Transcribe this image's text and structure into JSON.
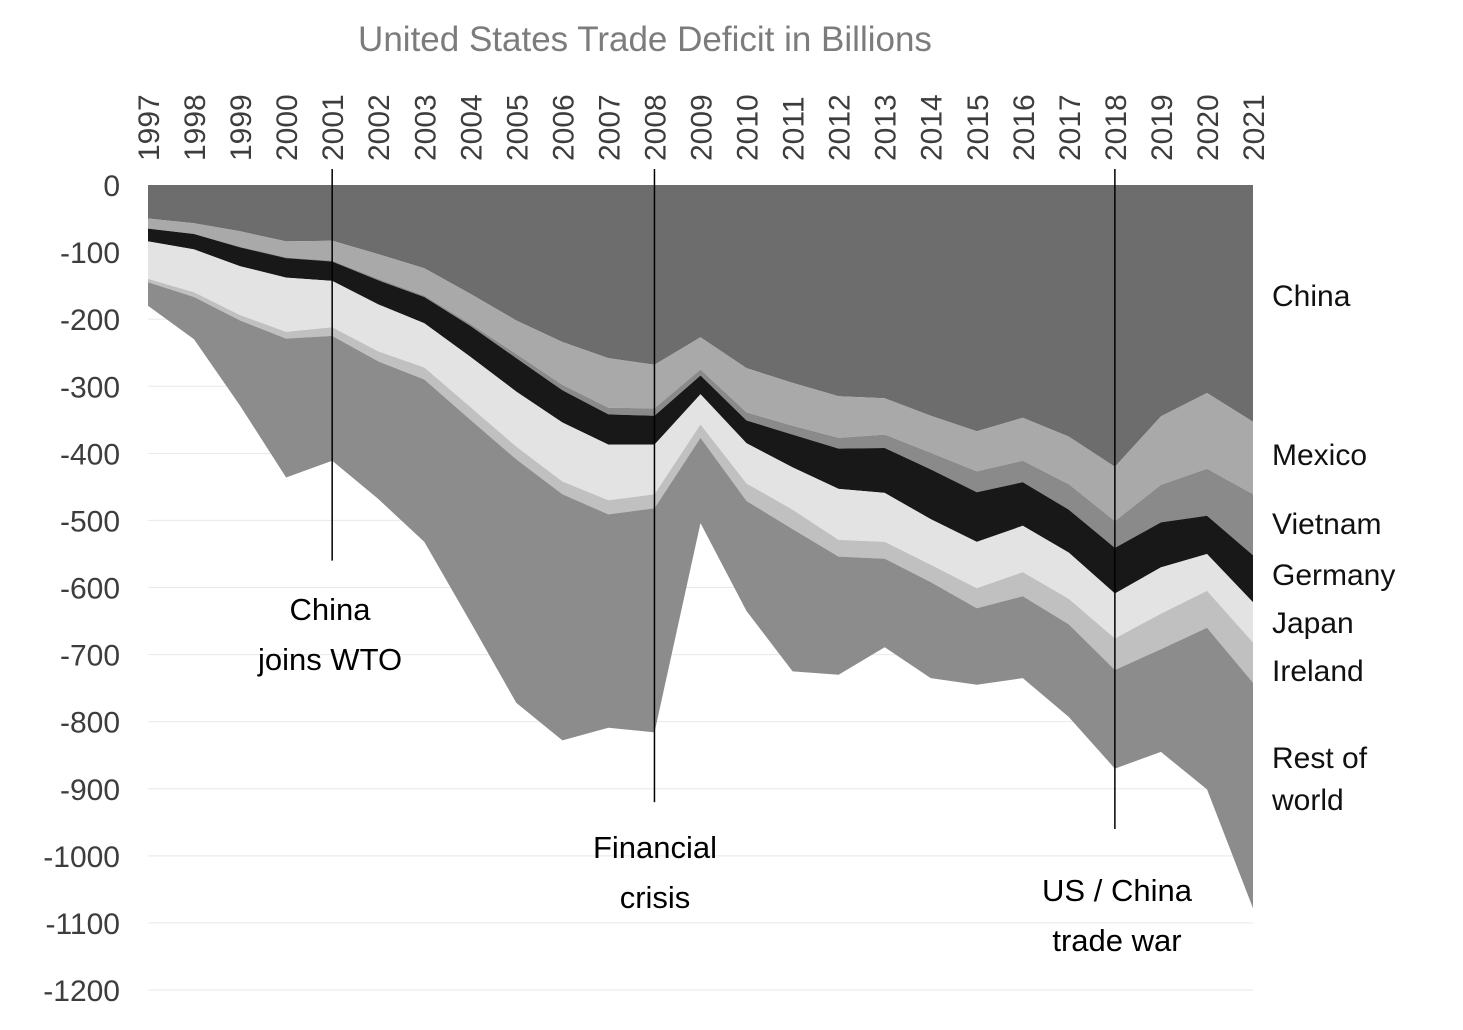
{
  "chart_data": {
    "type": "area",
    "stacked": true,
    "title": "United States Trade Deficit in Billions",
    "unit": "billions USD",
    "years": [
      1997,
      1998,
      1999,
      2000,
      2001,
      2002,
      2003,
      2004,
      2005,
      2006,
      2007,
      2008,
      2009,
      2010,
      2011,
      2012,
      2013,
      2014,
      2015,
      2016,
      2017,
      2018,
      2019,
      2020,
      2021
    ],
    "ylim": [
      -1200,
      0
    ],
    "ytick_step": 100,
    "grid": true,
    "colors": {
      "grid": "#e8e8e8",
      "axis_text": "#3d3d3d",
      "title_text": "#7c7c7c",
      "annotation_line": "#000000"
    },
    "series": [
      {
        "name": "China",
        "color": "#6d6d6d",
        "values": [
          -50,
          -57,
          -69,
          -84,
          -83,
          -103,
          -124,
          -162,
          -202,
          -234,
          -258,
          -268,
          -227,
          -273,
          -295,
          -315,
          -318,
          -344,
          -367,
          -347,
          -375,
          -420,
          -345,
          -310,
          -353
        ]
      },
      {
        "name": "Mexico",
        "color": "#a9a9a9",
        "values": [
          -15,
          -16,
          -23,
          -24,
          -30,
          -37,
          -41,
          -45,
          -50,
          -64,
          -74,
          -65,
          -48,
          -66,
          -64,
          -62,
          -54,
          -55,
          -60,
          -64,
          -71,
          -81,
          -102,
          -113,
          -108
        ]
      },
      {
        "name": "Vietnam",
        "color": "#8a8a8a",
        "values": [
          0,
          0,
          -1,
          -1,
          -1,
          -2,
          -2,
          -3,
          -6,
          -8,
          -10,
          -11,
          -9,
          -12,
          -13,
          -16,
          -20,
          -25,
          -31,
          -32,
          -38,
          -40,
          -56,
          -70,
          -91
        ]
      },
      {
        "name": "Germany",
        "color": "#181818",
        "values": [
          -19,
          -23,
          -28,
          -29,
          -29,
          -36,
          -39,
          -46,
          -50,
          -48,
          -45,
          -43,
          -28,
          -34,
          -49,
          -60,
          -67,
          -74,
          -74,
          -65,
          -64,
          -68,
          -67,
          -57,
          -70
        ]
      },
      {
        "name": "Japan",
        "color": "#e3e3e3",
        "values": [
          -56,
          -64,
          -73,
          -81,
          -69,
          -70,
          -66,
          -75,
          -82,
          -88,
          -83,
          -74,
          -45,
          -60,
          -63,
          -76,
          -73,
          -68,
          -69,
          -69,
          -69,
          -67,
          -69,
          -55,
          -60
        ]
      },
      {
        "name": "Ireland",
        "color": "#c0c0c0",
        "values": [
          -5,
          -7,
          -8,
          -10,
          -13,
          -15,
          -18,
          -19,
          -19,
          -19,
          -21,
          -21,
          -20,
          -26,
          -29,
          -25,
          -25,
          -26,
          -30,
          -36,
          -38,
          -47,
          -53,
          -55,
          -60
        ]
      },
      {
        "name": "Rest of world",
        "color": "#8c8c8c",
        "values": [
          -35,
          -63,
          -127,
          -207,
          -186,
          -205,
          -242,
          -301,
          -363,
          -367,
          -318,
          -334,
          -127,
          -164,
          -212,
          -176,
          -132,
          -143,
          -114,
          -122,
          -138,
          -147,
          -153,
          -241,
          -336
        ]
      }
    ],
    "annotations": [
      {
        "year": 2001,
        "line1": "China",
        "line2": "joins WTO",
        "line_end_value": -560
      },
      {
        "year": 2008,
        "line1": "Financial",
        "line2": "crisis",
        "line_end_value": -920
      },
      {
        "year": 2018,
        "line1": "US / China",
        "line2": "trade war",
        "line_end_value": -960
      }
    ]
  }
}
